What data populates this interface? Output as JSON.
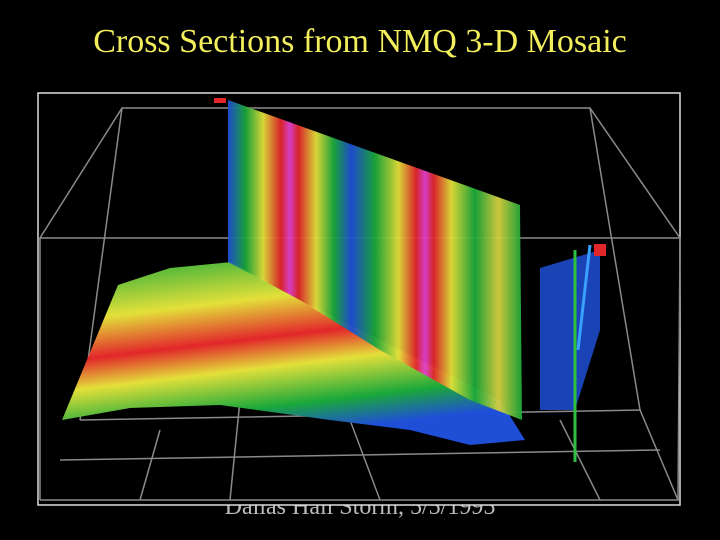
{
  "title": "Cross Sections from NMQ 3-D Mosaic",
  "caption": "Dallas Hail Storm, 5/5/1995"
}
